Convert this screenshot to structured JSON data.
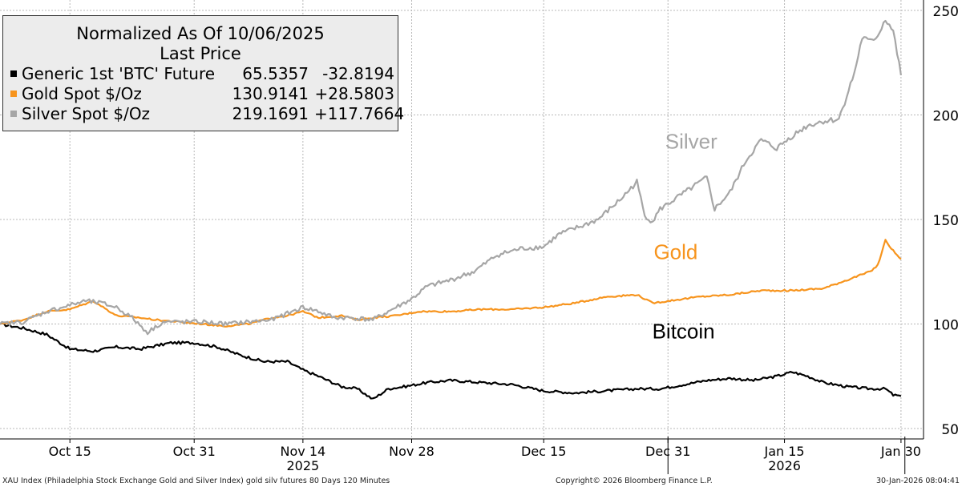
{
  "chart_data": {
    "type": "line",
    "title": "Normalized As Of 10/06/2025",
    "subtitle": "Last Price",
    "x_start": "2025-10-06",
    "x_end": "2026-01-30",
    "x_ticks": [
      "Oct 15",
      "Oct 31",
      "Nov 14",
      "Nov 28",
      "Dec 15",
      "Dec 31",
      "Jan 15",
      "Jan 30"
    ],
    "x_tick_days": [
      9,
      25,
      39,
      53,
      70,
      86,
      101,
      116
    ],
    "year_labels": [
      {
        "label": "2025",
        "day": 39
      },
      {
        "label": "2026",
        "day": 101
      }
    ],
    "year_dividers_days": [
      86,
      116.5
    ],
    "ylim": [
      45,
      255
    ],
    "y_ticks": [
      50,
      100,
      150,
      200,
      250
    ],
    "grid": true,
    "legend_position": "top-left",
    "series": [
      {
        "name": "Generic 1st 'BTC' Future",
        "color": "#000000",
        "last_price": "65.5357",
        "change": "-32.8194",
        "label": "Bitcoin",
        "label_at": {
          "day": 88,
          "value": 93
        },
        "points": [
          [
            0,
            100
          ],
          [
            3,
            98
          ],
          [
            6,
            95
          ],
          [
            9,
            88
          ],
          [
            12,
            87
          ],
          [
            15,
            89
          ],
          [
            18,
            88
          ],
          [
            22,
            91
          ],
          [
            25,
            91
          ],
          [
            28,
            89
          ],
          [
            31,
            85
          ],
          [
            34,
            82
          ],
          [
            37,
            82
          ],
          [
            39,
            78
          ],
          [
            41,
            75
          ],
          [
            44,
            70
          ],
          [
            46,
            69
          ],
          [
            48,
            64
          ],
          [
            50,
            69
          ],
          [
            52,
            70
          ],
          [
            55,
            72
          ],
          [
            58,
            73
          ],
          [
            62,
            72
          ],
          [
            66,
            71
          ],
          [
            70,
            68
          ],
          [
            74,
            67
          ],
          [
            78,
            68
          ],
          [
            82,
            69
          ],
          [
            85,
            69
          ],
          [
            88,
            71
          ],
          [
            91,
            73
          ],
          [
            94,
            74
          ],
          [
            97,
            73
          ],
          [
            100,
            75
          ],
          [
            102,
            77
          ],
          [
            104,
            75
          ],
          [
            106,
            72
          ],
          [
            109,
            70
          ],
          [
            112,
            69
          ],
          [
            114,
            69
          ],
          [
            115,
            66
          ],
          [
            116,
            65.5
          ]
        ]
      },
      {
        "name": "Gold Spot $/Oz",
        "color": "#f7941d",
        "last_price": "130.9141",
        "change": "+28.5803",
        "label": "Gold",
        "label_at": {
          "day": 87,
          "value": 131
        },
        "points": [
          [
            0,
            100
          ],
          [
            3,
            102
          ],
          [
            6,
            106
          ],
          [
            9,
            107
          ],
          [
            12,
            111
          ],
          [
            15,
            104
          ],
          [
            18,
            103
          ],
          [
            20,
            102
          ],
          [
            23,
            101
          ],
          [
            26,
            100
          ],
          [
            29,
            99
          ],
          [
            32,
            100
          ],
          [
            35,
            103
          ],
          [
            37,
            104
          ],
          [
            39,
            106
          ],
          [
            41,
            103
          ],
          [
            44,
            104
          ],
          [
            46,
            102
          ],
          [
            48,
            103
          ],
          [
            51,
            104
          ],
          [
            54,
            106
          ],
          [
            58,
            106
          ],
          [
            62,
            107
          ],
          [
            66,
            107
          ],
          [
            70,
            108
          ],
          [
            74,
            110
          ],
          [
            78,
            113
          ],
          [
            82,
            114
          ],
          [
            84,
            110
          ],
          [
            86,
            111
          ],
          [
            90,
            113
          ],
          [
            94,
            114
          ],
          [
            98,
            116
          ],
          [
            102,
            116
          ],
          [
            106,
            117
          ],
          [
            109,
            121
          ],
          [
            112,
            125
          ],
          [
            113,
            128
          ],
          [
            114,
            140
          ],
          [
            115,
            135
          ],
          [
            116,
            131
          ]
        ]
      },
      {
        "name": "Silver Spot $/Oz",
        "color": "#a6a6a6",
        "last_price": "219.1691",
        "change": "+117.7664",
        "label": "Silver",
        "label_at": {
          "day": 89,
          "value": 184
        },
        "points": [
          [
            0,
            100
          ],
          [
            3,
            101
          ],
          [
            6,
            106
          ],
          [
            9,
            109
          ],
          [
            11,
            111
          ],
          [
            13,
            110
          ],
          [
            15,
            108
          ],
          [
            17,
            103
          ],
          [
            19,
            96
          ],
          [
            21,
            101
          ],
          [
            23,
            101
          ],
          [
            26,
            101
          ],
          [
            29,
            100
          ],
          [
            32,
            101
          ],
          [
            35,
            102
          ],
          [
            37,
            105
          ],
          [
            39,
            108
          ],
          [
            41,
            106
          ],
          [
            43,
            103
          ],
          [
            45,
            103
          ],
          [
            48,
            102
          ],
          [
            51,
            108
          ],
          [
            53,
            112
          ],
          [
            55,
            118
          ],
          [
            58,
            121
          ],
          [
            61,
            125
          ],
          [
            64,
            133
          ],
          [
            67,
            136
          ],
          [
            70,
            137
          ],
          [
            72,
            143
          ],
          [
            75,
            147
          ],
          [
            77,
            150
          ],
          [
            80,
            160
          ],
          [
            82,
            168
          ],
          [
            83,
            152
          ],
          [
            84,
            149
          ],
          [
            85,
            155
          ],
          [
            87,
            160
          ],
          [
            89,
            165
          ],
          [
            91,
            170
          ],
          [
            92,
            155
          ],
          [
            94,
            163
          ],
          [
            96,
            178
          ],
          [
            98,
            188
          ],
          [
            100,
            184
          ],
          [
            102,
            190
          ],
          [
            104,
            195
          ],
          [
            106,
            197
          ],
          [
            108,
            198
          ],
          [
            110,
            220
          ],
          [
            111,
            237
          ],
          [
            112,
            235
          ],
          [
            113,
            238
          ],
          [
            114,
            246
          ],
          [
            115,
            240
          ],
          [
            116,
            219
          ]
        ]
      }
    ]
  },
  "footer": {
    "source": "XAU Index (Philadelphia Stock Exchange Gold and Silver Index) gold silv futures 80 Days 120 Minutes",
    "copyright": "Copyright© 2026 Bloomberg Finance L.P.",
    "timestamp": "30-Jan-2026 08:04:41"
  }
}
